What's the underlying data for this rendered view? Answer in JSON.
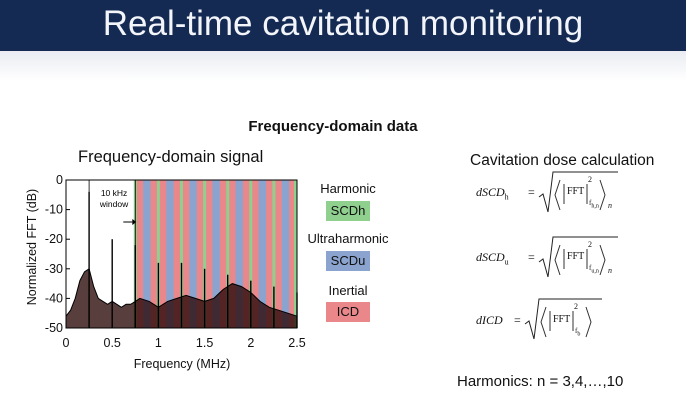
{
  "slide": {
    "title": "Real-time cavitation monitoring",
    "section_heading": "Frequency-domain data",
    "plot_title": "Frequency-domain signal",
    "right_heading": "Cavitation dose calculation",
    "harmonics_note": "Harmonics: n = 3,4,…,10"
  },
  "legend": {
    "harmonic_label": "Harmonic",
    "harmonic_box": "SCDh",
    "harmonic_color": "#8fd08f",
    "ultraharmonic_label": "Ultraharmonic",
    "ultraharmonic_box": "SCDu",
    "ultraharmonic_color": "#8aa4cf",
    "inertial_label": "Inertial",
    "inertial_box": "ICD",
    "inertial_color": "#e9878a"
  },
  "formulas": {
    "scdh_lhs": "dSCD",
    "scdh_sub": "h",
    "scdh_fft_sub": "f",
    "scdh_fft_subsub": "h,n",
    "scdh_outer_sub": "n",
    "scdu_lhs": "dSCD",
    "scdu_sub": "u",
    "scdu_fft_sub": "f",
    "scdu_fft_subsub": "u,n",
    "scdu_outer_sub": "n",
    "icd_lhs": "dICD",
    "icd_fft_sub": "f",
    "icd_fft_subsub": "b",
    "fft": "FFT",
    "power": "2",
    "equals": "="
  },
  "chart_data": {
    "type": "line",
    "title": "",
    "xlabel": "Frequency (MHz)",
    "ylabel": "Normalized FFT (dB)",
    "xlim": [
      0,
      2.5
    ],
    "ylim": [
      -50,
      0
    ],
    "xticks": [
      "0",
      "0.5",
      "1",
      "1.5",
      "2",
      "2.5"
    ],
    "yticks": [
      "0",
      "-10",
      "-20",
      "-30",
      "-40",
      "-50"
    ],
    "fundamental_MHz": 0.25,
    "annotation": {
      "text_line1": "10 kHz",
      "text_line2": "window",
      "at_MHz": 0.75
    },
    "harmonic_bands_MHz": [
      0.75,
      1.0,
      1.25,
      1.5,
      1.75,
      2.0,
      2.25,
      2.5
    ],
    "ultraharmonic_bands_MHz": [
      0.875,
      1.125,
      1.375,
      1.625,
      1.875,
      2.125,
      2.375
    ],
    "spectrum_envelope": {
      "x": [
        0,
        0.05,
        0.1,
        0.15,
        0.2,
        0.25,
        0.3,
        0.35,
        0.4,
        0.45,
        0.5,
        0.55,
        0.6,
        0.65,
        0.7,
        0.75,
        0.8,
        0.9,
        1.0,
        1.1,
        1.2,
        1.3,
        1.4,
        1.5,
        1.6,
        1.7,
        1.8,
        1.9,
        2.0,
        2.1,
        2.2,
        2.3,
        2.4,
        2.5
      ],
      "y": [
        -46,
        -44,
        -40,
        -34,
        -31,
        -30,
        -36,
        -40,
        -41,
        -42,
        -41,
        -42,
        -43,
        -42,
        -42,
        -41,
        -40,
        -41,
        -43,
        -41,
        -40,
        -39,
        -40,
        -41,
        -40,
        -37,
        -35,
        -36,
        -38,
        -41,
        -43,
        -44,
        -45,
        -46
      ]
    },
    "peaks": {
      "x": [
        0.25,
        0.5,
        0.75,
        1.0,
        1.25,
        1.5,
        1.75,
        2.0,
        2.25,
        2.5
      ],
      "y": [
        -4,
        -20,
        -22,
        -28,
        -28,
        -30,
        -32,
        -34,
        -36,
        -38
      ]
    },
    "grid": false,
    "legend": "right of plot"
  }
}
